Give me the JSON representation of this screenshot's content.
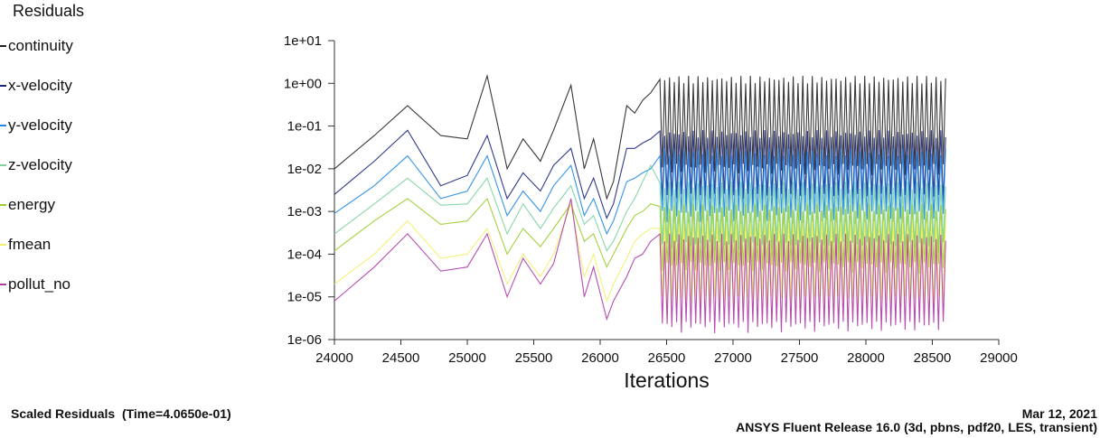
{
  "legend": {
    "title": "Residuals"
  },
  "footer": {
    "left": "Scaled Residuals  (Time=4.0650e-01)",
    "date": "Mar 12, 2021",
    "release": "ANSYS Fluent Release 16.0 (3d, pbns, pdf20, LES, transient)"
  },
  "chart_data": {
    "type": "line",
    "title": "Residuals",
    "xlabel": "Iterations",
    "ylabel": "",
    "xlim": [
      24000,
      29000
    ],
    "ylim": [
      1e-06,
      10
    ],
    "yscale": "log",
    "grid": false,
    "legend_position": "left",
    "x_ticks": [
      "24000",
      "24500",
      "25000",
      "25500",
      "26000",
      "26500",
      "27000",
      "27500",
      "28000",
      "28500",
      "29000"
    ],
    "y_ticks": [
      "1e+01",
      "1e+00",
      "1e-01",
      "1e-02",
      "1e-03",
      "1e-04",
      "1e-05",
      "1e-06"
    ],
    "series": [
      {
        "name": "continuity",
        "color": "#222222",
        "x": [
          24000,
          24300,
          24550,
          24800,
          25000,
          25150,
          25300,
          25420,
          25550,
          25650,
          25780,
          25880,
          25950,
          26050,
          26100,
          26200,
          26260,
          26320,
          26380
        ],
        "y": [
          0.01,
          0.06,
          0.3,
          0.06,
          0.05,
          1.5,
          0.01,
          0.05,
          0.015,
          0.08,
          0.9,
          0.01,
          0.05,
          0.002,
          0.005,
          0.3,
          0.2,
          0.4,
          0.6
        ],
        "burst_from": 26450,
        "burst_to": 28600,
        "burst_high": 1.5,
        "burst_low": 0.01
      },
      {
        "name": "x-velocity",
        "color": "#1a237e",
        "x": [
          24000,
          24300,
          24550,
          24800,
          25000,
          25150,
          25300,
          25420,
          25550,
          25650,
          25780,
          25880,
          25950,
          26050,
          26100,
          26200,
          26260,
          26320,
          26380
        ],
        "y": [
          0.0025,
          0.015,
          0.08,
          0.004,
          0.007,
          0.06,
          0.002,
          0.008,
          0.003,
          0.012,
          0.03,
          0.002,
          0.006,
          0.0007,
          0.0015,
          0.03,
          0.03,
          0.04,
          0.05
        ],
        "burst_from": 26450,
        "burst_to": 28600,
        "burst_high": 0.08,
        "burst_low": 0.002
      },
      {
        "name": "y-velocity",
        "color": "#1e88e5",
        "x": [
          24000,
          24300,
          24550,
          24800,
          25000,
          25150,
          25300,
          25420,
          25550,
          25650,
          25780,
          25880,
          25950,
          26050,
          26100,
          26200,
          26260,
          26320,
          26380
        ],
        "y": [
          0.0009,
          0.004,
          0.02,
          0.002,
          0.003,
          0.02,
          0.0008,
          0.003,
          0.001,
          0.004,
          0.012,
          0.0008,
          0.002,
          0.0003,
          0.0006,
          0.005,
          0.006,
          0.008,
          0.01
        ],
        "burst_from": 26450,
        "burst_to": 28600,
        "burst_high": 0.03,
        "burst_low": 0.0008
      },
      {
        "name": "z-velocity",
        "color": "#7cd3a0",
        "x": [
          24000,
          24300,
          24550,
          24800,
          25000,
          25150,
          25300,
          25420,
          25550,
          25650,
          25780,
          25880,
          25950,
          26050,
          26100,
          26200,
          26260,
          26320,
          26380
        ],
        "y": [
          0.0003,
          0.0015,
          0.006,
          0.0014,
          0.0015,
          0.006,
          0.0003,
          0.0015,
          0.0004,
          0.0012,
          0.004,
          0.0005,
          0.0008,
          0.00012,
          0.0002,
          0.001,
          0.002,
          0.005,
          0.012
        ],
        "burst_from": 26450,
        "burst_to": 28600,
        "burst_high": 0.005,
        "burst_low": 0.00015
      },
      {
        "name": "energy",
        "color": "#9ccc2d",
        "x": [
          24000,
          24300,
          24550,
          24800,
          25000,
          25150,
          25300,
          25420,
          25550,
          25650,
          25780,
          25880,
          25950,
          26050,
          26100,
          26200,
          26260,
          26320,
          26380
        ],
        "y": [
          0.00012,
          0.0006,
          0.002,
          0.0005,
          0.0006,
          0.002,
          0.0001,
          0.0004,
          0.00015,
          0.0004,
          0.0015,
          0.0002,
          0.0003,
          5e-05,
          0.0001,
          0.0004,
          0.0008,
          0.001,
          0.0015
        ],
        "burst_from": 26450,
        "burst_to": 28600,
        "burst_high": 0.0015,
        "burst_low": 5e-05
      },
      {
        "name": "fmean",
        "color": "#f2f06a",
        "x": [
          24000,
          24300,
          24550,
          24800,
          25000,
          25150,
          25300,
          25420,
          25550,
          25650,
          25780,
          25880,
          25950,
          26050,
          26100,
          26200,
          26260,
          26320,
          26380
        ],
        "y": [
          2e-05,
          0.0001,
          0.0006,
          8e-05,
          0.0001,
          0.0004,
          2e-05,
          0.0001,
          3e-05,
          0.0001,
          0.0015,
          3e-05,
          0.0001,
          8e-06,
          2e-05,
          8e-05,
          0.0002,
          0.0003,
          0.0004
        ],
        "burst_from": 26450,
        "burst_to": 28600,
        "burst_high": 0.0006,
        "burst_low": 8e-06
      },
      {
        "name": "pollut_no",
        "color": "#b03aa8",
        "x": [
          24000,
          24300,
          24550,
          24800,
          25000,
          25150,
          25300,
          25420,
          25550,
          25650,
          25780,
          25880,
          25950,
          26050,
          26100,
          26200,
          26260,
          26320,
          26380
        ],
        "y": [
          8e-06,
          5e-05,
          0.0003,
          4e-05,
          5e-05,
          0.0003,
          1e-05,
          8e-05,
          2e-05,
          6e-05,
          0.002,
          1e-05,
          5e-05,
          3e-06,
          8e-06,
          3e-05,
          8e-05,
          0.0001,
          0.0002
        ],
        "burst_from": 26450,
        "burst_to": 28600,
        "burst_high": 0.0003,
        "burst_low": 2e-06
      }
    ]
  }
}
